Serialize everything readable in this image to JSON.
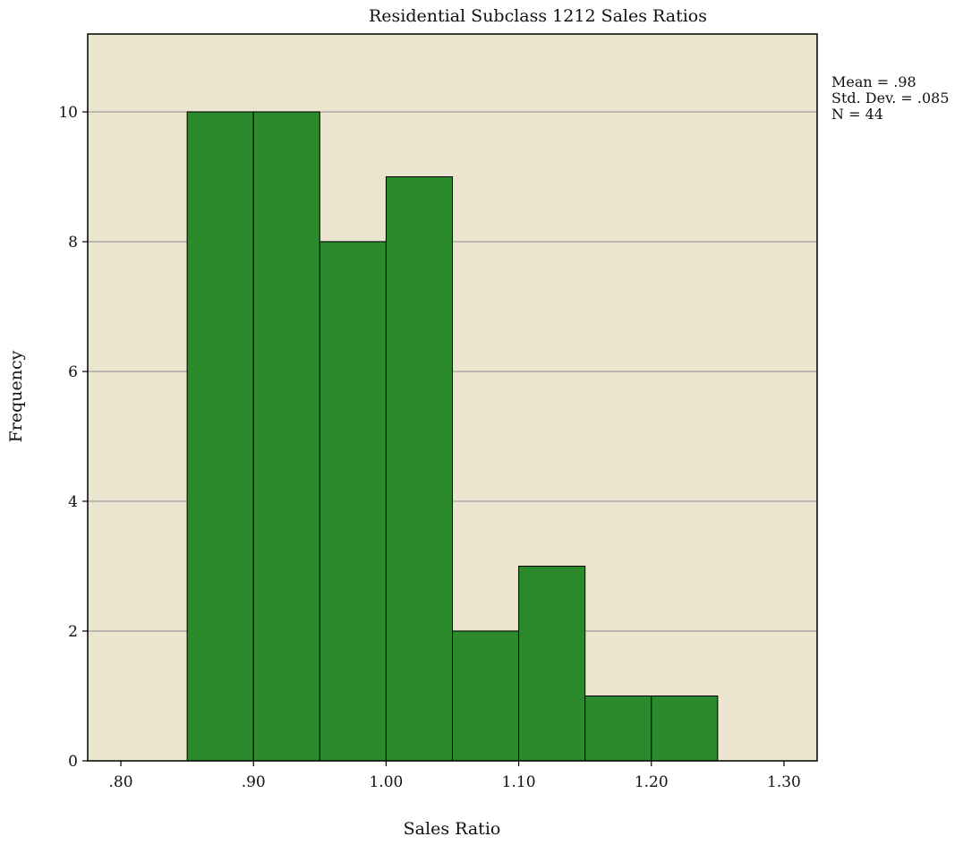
{
  "chart_data": {
    "type": "histogram",
    "title": "Residential Subclass 1212 Sales Ratios",
    "xlabel": "Sales Ratio",
    "ylabel": "Frequency",
    "xlim": [
      0.775,
      1.325
    ],
    "ylim": [
      0,
      11.2
    ],
    "x_ticks": [
      {
        "value": 0.8,
        "label": ".80"
      },
      {
        "value": 0.9,
        "label": ".90"
      },
      {
        "value": 1.0,
        "label": "1.00"
      },
      {
        "value": 1.1,
        "label": "1.10"
      },
      {
        "value": 1.2,
        "label": "1.20"
      },
      {
        "value": 1.3,
        "label": "1.30"
      }
    ],
    "y_ticks": [
      {
        "value": 0,
        "label": "0"
      },
      {
        "value": 2,
        "label": "2"
      },
      {
        "value": 4,
        "label": "4"
      },
      {
        "value": 6,
        "label": "6"
      },
      {
        "value": 8,
        "label": "8"
      },
      {
        "value": 10,
        "label": "10"
      }
    ],
    "grid": "horizontal",
    "bins": [
      {
        "start": 0.85,
        "end": 0.9,
        "count": 10
      },
      {
        "start": 0.9,
        "end": 0.95,
        "count": 10
      },
      {
        "start": 0.95,
        "end": 1.0,
        "count": 8
      },
      {
        "start": 1.0,
        "end": 1.05,
        "count": 9
      },
      {
        "start": 1.05,
        "end": 1.1,
        "count": 2
      },
      {
        "start": 1.1,
        "end": 1.15,
        "count": 3
      },
      {
        "start": 1.15,
        "end": 1.2,
        "count": 1
      },
      {
        "start": 1.2,
        "end": 1.25,
        "count": 1
      }
    ],
    "stats_lines": [
      "Mean = .98",
      "Std. Dev. = .085",
      "N = 44"
    ],
    "colors": {
      "plot_background": "#ebe4cf",
      "bar_fill": "#2b8a2b",
      "bar_stroke": "#000000",
      "grid": "#a9a9a9"
    }
  }
}
